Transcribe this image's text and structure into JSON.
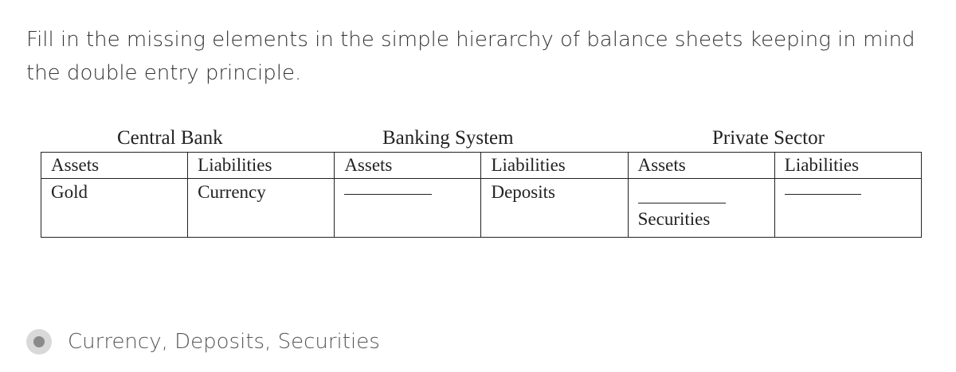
{
  "question": {
    "text": "Fill in the missing elements in the simple hierarchy of balance sheets keeping in mind the double entry principle."
  },
  "figure": {
    "groups": [
      {
        "title": "Central Bank"
      },
      {
        "title": "Banking System"
      },
      {
        "title": "Private Sector"
      }
    ],
    "headers": [
      "Assets",
      "Liabilities",
      "Assets",
      "Liabilities",
      "Assets",
      "Liabilities"
    ],
    "cells": {
      "cb_assets": "Gold",
      "cb_liabilities": "Currency",
      "bs_liabilities": "Deposits",
      "ps_assets_below": "Securities"
    }
  },
  "answer": {
    "selected": true,
    "label": "Currency, Deposits, Securities"
  }
}
